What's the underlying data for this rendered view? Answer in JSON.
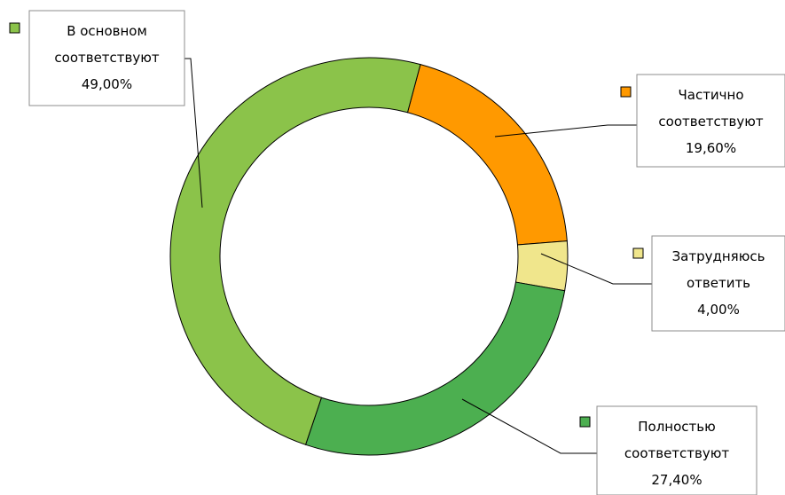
{
  "chart_data": {
    "type": "pie",
    "style": "donut",
    "slices": [
      {
        "label_lines": [
          "Частично",
          "соответствуют",
          "19,60%"
        ],
        "value": 19.6,
        "color": "#ff9900"
      },
      {
        "label_lines": [
          "Затрудняюсь",
          "ответить",
          "4,00%"
        ],
        "value": 4.0,
        "color": "#f0e68c"
      },
      {
        "label_lines": [
          "Полностью",
          "соответствуют",
          "27,40%"
        ],
        "value": 27.4,
        "color": "#4caf50"
      },
      {
        "label_lines": [
          "В основном",
          "соответствуют",
          "49,00%"
        ],
        "value": 49.0,
        "color": "#8bc34a"
      }
    ]
  }
}
